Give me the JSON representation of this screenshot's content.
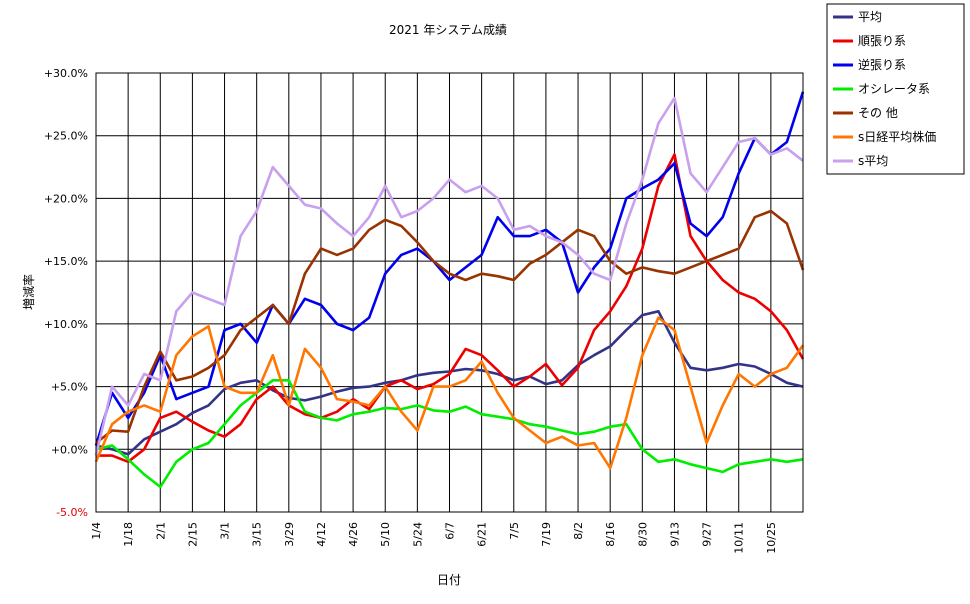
{
  "chart_data": {
    "type": "line",
    "title": "2021 年システム成績",
    "xlabel": "日付",
    "ylabel": "増減率",
    "ylim": [
      -5,
      30
    ],
    "y_ticks": [
      "+30.0%",
      "+25.0%",
      "+20.0%",
      "+15.0%",
      "+10.0%",
      "+5.0%",
      "+0.0%",
      "-5.0%"
    ],
    "y_tick_values": [
      30,
      25,
      20,
      15,
      10,
      5,
      0,
      -5
    ],
    "x_tick_labels": [
      "1/4",
      "1/18",
      "2/1",
      "2/15",
      "3/1",
      "3/15",
      "3/29",
      "4/12",
      "4/26",
      "5/10",
      "5/24",
      "6/7",
      "6/21",
      "7/5",
      "7/19",
      "8/2",
      "8/16",
      "8/30",
      "9/13",
      "9/27",
      "10/11",
      "10/25"
    ],
    "x_range_weeks": [
      0,
      44
    ],
    "grid": true,
    "legend_position": "top-right",
    "series": [
      {
        "name": "平均",
        "color": "#333388",
        "points": [
          [
            0,
            0.3
          ],
          [
            1,
            0
          ],
          [
            2,
            -0.4
          ],
          [
            3,
            0.8
          ],
          [
            4,
            1.4
          ],
          [
            5,
            2
          ],
          [
            6,
            2.9
          ],
          [
            7,
            3.5
          ],
          [
            8,
            4.8
          ],
          [
            9,
            5.3
          ],
          [
            10,
            5.5
          ],
          [
            11,
            4.7
          ],
          [
            12,
            4.1
          ],
          [
            13,
            3.9
          ],
          [
            14,
            4.2
          ],
          [
            15,
            4.6
          ],
          [
            16,
            4.9
          ],
          [
            17,
            5
          ],
          [
            18,
            5.3
          ],
          [
            19,
            5.5
          ],
          [
            20,
            5.9
          ],
          [
            21,
            6.1
          ],
          [
            22,
            6.2
          ],
          [
            23,
            6.4
          ],
          [
            24,
            6.3
          ],
          [
            25,
            6
          ],
          [
            26,
            5.5
          ],
          [
            27,
            5.8
          ],
          [
            28,
            5.2
          ],
          [
            29,
            5.5
          ],
          [
            30,
            6.7
          ],
          [
            31,
            7.5
          ],
          [
            32,
            8.2
          ],
          [
            33,
            9.5
          ],
          [
            34,
            10.7
          ],
          [
            35,
            11
          ],
          [
            36,
            8.5
          ],
          [
            37,
            6.5
          ],
          [
            38,
            6.3
          ],
          [
            39,
            6.5
          ],
          [
            40,
            6.8
          ],
          [
            41,
            6.6
          ],
          [
            42,
            6
          ],
          [
            43,
            5.3
          ],
          [
            44,
            5
          ]
        ]
      },
      {
        "name": "順張り系",
        "color": "#ee0000",
        "points": [
          [
            0,
            -0.5
          ],
          [
            1,
            -0.5
          ],
          [
            2,
            -1
          ],
          [
            3,
            0
          ],
          [
            4,
            2.5
          ],
          [
            5,
            3
          ],
          [
            6,
            2.2
          ],
          [
            7,
            1.5
          ],
          [
            8,
            1
          ],
          [
            9,
            2
          ],
          [
            10,
            4
          ],
          [
            11,
            5
          ],
          [
            12,
            3.5
          ],
          [
            13,
            2.8
          ],
          [
            14,
            2.5
          ],
          [
            15,
            3
          ],
          [
            16,
            4
          ],
          [
            17,
            3.2
          ],
          [
            18,
            5
          ],
          [
            19,
            5.5
          ],
          [
            20,
            4.8
          ],
          [
            21,
            5.2
          ],
          [
            22,
            6
          ],
          [
            23,
            8
          ],
          [
            24,
            7.5
          ],
          [
            25,
            6.3
          ],
          [
            26,
            5
          ],
          [
            27,
            5.8
          ],
          [
            28,
            6.8
          ],
          [
            29,
            5.1
          ],
          [
            30,
            6.5
          ],
          [
            31,
            9.5
          ],
          [
            32,
            11
          ],
          [
            33,
            13
          ],
          [
            34,
            16
          ],
          [
            35,
            21
          ],
          [
            36,
            23.5
          ],
          [
            37,
            17
          ],
          [
            38,
            15
          ],
          [
            39,
            13.5
          ],
          [
            40,
            12.5
          ],
          [
            41,
            12
          ],
          [
            42,
            11
          ],
          [
            43,
            9.5
          ],
          [
            44,
            7.2
          ]
        ]
      },
      {
        "name": "逆張り系",
        "color": "#0000ee",
        "points": [
          [
            0,
            0.3
          ],
          [
            1,
            4.5
          ],
          [
            2,
            2.5
          ],
          [
            3,
            4.5
          ],
          [
            4,
            7.5
          ],
          [
            5,
            4
          ],
          [
            6,
            4.5
          ],
          [
            7,
            5
          ],
          [
            8,
            9.5
          ],
          [
            9,
            10
          ],
          [
            10,
            8.5
          ],
          [
            11,
            11.5
          ],
          [
            12,
            10
          ],
          [
            13,
            12
          ],
          [
            14,
            11.5
          ],
          [
            15,
            10
          ],
          [
            16,
            9.5
          ],
          [
            17,
            10.5
          ],
          [
            18,
            14
          ],
          [
            19,
            15.5
          ],
          [
            20,
            16
          ],
          [
            21,
            15
          ],
          [
            22,
            13.5
          ],
          [
            23,
            14.5
          ],
          [
            24,
            15.5
          ],
          [
            25,
            18.5
          ],
          [
            26,
            17
          ],
          [
            27,
            17
          ],
          [
            28,
            17.5
          ],
          [
            29,
            16.5
          ],
          [
            30,
            12.5
          ],
          [
            31,
            14.5
          ],
          [
            32,
            16
          ],
          [
            33,
            20
          ],
          [
            34,
            20.8
          ],
          [
            35,
            21.5
          ],
          [
            36,
            22.8
          ],
          [
            37,
            18
          ],
          [
            38,
            17
          ],
          [
            39,
            18.5
          ],
          [
            40,
            22
          ],
          [
            41,
            24.8
          ],
          [
            42,
            23.5
          ],
          [
            43,
            24.5
          ],
          [
            44,
            28.5
          ]
        ]
      },
      {
        "name": "オシレータ系",
        "color": "#00ee00",
        "points": [
          [
            0,
            0
          ],
          [
            1,
            0.3
          ],
          [
            2,
            -0.8
          ],
          [
            3,
            -2
          ],
          [
            4,
            -3
          ],
          [
            5,
            -1
          ],
          [
            6,
            0
          ],
          [
            7,
            0.5
          ],
          [
            8,
            2
          ],
          [
            9,
            3.5
          ],
          [
            10,
            4.5
          ],
          [
            11,
            5.5
          ],
          [
            12,
            5.5
          ],
          [
            13,
            3
          ],
          [
            14,
            2.5
          ],
          [
            15,
            2.3
          ],
          [
            16,
            2.8
          ],
          [
            17,
            3
          ],
          [
            18,
            3.3
          ],
          [
            19,
            3.2
          ],
          [
            20,
            3.5
          ],
          [
            21,
            3.1
          ],
          [
            22,
            3
          ],
          [
            23,
            3.4
          ],
          [
            24,
            2.8
          ],
          [
            25,
            2.6
          ],
          [
            26,
            2.4
          ],
          [
            27,
            2
          ],
          [
            28,
            1.8
          ],
          [
            29,
            1.5
          ],
          [
            30,
            1.2
          ],
          [
            31,
            1.4
          ],
          [
            32,
            1.8
          ],
          [
            33,
            2
          ],
          [
            34,
            0
          ],
          [
            35,
            -1
          ],
          [
            36,
            -0.8
          ],
          [
            37,
            -1.2
          ],
          [
            38,
            -1.5
          ],
          [
            39,
            -1.8
          ],
          [
            40,
            -1.2
          ],
          [
            41,
            -1
          ],
          [
            42,
            -0.8
          ],
          [
            43,
            -1
          ],
          [
            44,
            -0.8
          ]
        ]
      },
      {
        "name": "その 他",
        "color": "#993300",
        "points": [
          [
            0,
            0.5
          ],
          [
            1,
            1.5
          ],
          [
            2,
            1.4
          ],
          [
            3,
            5
          ],
          [
            4,
            7.8
          ],
          [
            5,
            5.5
          ],
          [
            6,
            5.8
          ],
          [
            7,
            6.5
          ],
          [
            8,
            7.5
          ],
          [
            9,
            9.5
          ],
          [
            10,
            10.5
          ],
          [
            11,
            11.5
          ],
          [
            12,
            10
          ],
          [
            13,
            14
          ],
          [
            14,
            16
          ],
          [
            15,
            15.5
          ],
          [
            16,
            16
          ],
          [
            17,
            17.5
          ],
          [
            18,
            18.3
          ],
          [
            19,
            17.8
          ],
          [
            20,
            16.5
          ],
          [
            21,
            15
          ],
          [
            22,
            14
          ],
          [
            23,
            13.5
          ],
          [
            24,
            14
          ],
          [
            25,
            13.8
          ],
          [
            26,
            13.5
          ],
          [
            27,
            14.8
          ],
          [
            28,
            15.5
          ],
          [
            29,
            16.5
          ],
          [
            30,
            17.5
          ],
          [
            31,
            17
          ],
          [
            32,
            15
          ],
          [
            33,
            14
          ],
          [
            34,
            14.5
          ],
          [
            35,
            14.2
          ],
          [
            36,
            14
          ],
          [
            37,
            14.5
          ],
          [
            38,
            15
          ],
          [
            39,
            15.5
          ],
          [
            40,
            16
          ],
          [
            41,
            18.5
          ],
          [
            42,
            19
          ],
          [
            43,
            18
          ],
          [
            44,
            14.3
          ]
        ]
      },
      {
        "name": "s日経平均株価",
        "color": "#ff7700",
        "points": [
          [
            0,
            -1
          ],
          [
            1,
            2
          ],
          [
            2,
            3
          ],
          [
            3,
            3.5
          ],
          [
            4,
            3
          ],
          [
            5,
            7.5
          ],
          [
            6,
            9
          ],
          [
            7,
            9.8
          ],
          [
            8,
            5
          ],
          [
            9,
            4.5
          ],
          [
            10,
            4.5
          ],
          [
            11,
            7.5
          ],
          [
            12,
            3.5
          ],
          [
            13,
            8
          ],
          [
            14,
            6.5
          ],
          [
            15,
            4
          ],
          [
            16,
            3.8
          ],
          [
            17,
            3.5
          ],
          [
            18,
            5
          ],
          [
            19,
            3
          ],
          [
            20,
            1.5
          ],
          [
            21,
            5
          ],
          [
            22,
            5
          ],
          [
            23,
            5.5
          ],
          [
            24,
            7
          ],
          [
            25,
            4.5
          ],
          [
            26,
            2.5
          ],
          [
            27,
            1.5
          ],
          [
            28,
            0.5
          ],
          [
            29,
            1
          ],
          [
            30,
            0.3
          ],
          [
            31,
            0.5
          ],
          [
            32,
            -1.5
          ],
          [
            33,
            2.5
          ],
          [
            34,
            7.5
          ],
          [
            35,
            10.5
          ],
          [
            36,
            9.5
          ],
          [
            37,
            5
          ],
          [
            38,
            0.5
          ],
          [
            39,
            3.5
          ],
          [
            40,
            6
          ],
          [
            41,
            5
          ],
          [
            42,
            6
          ],
          [
            43,
            6.5
          ],
          [
            44,
            8.3
          ]
        ]
      },
      {
        "name": "s平均",
        "color": "#c8a0ee",
        "points": [
          [
            0,
            -0.5
          ],
          [
            1,
            5
          ],
          [
            2,
            3.5
          ],
          [
            3,
            6
          ],
          [
            4,
            5.5
          ],
          [
            5,
            11
          ],
          [
            6,
            12.5
          ],
          [
            7,
            12
          ],
          [
            8,
            11.5
          ],
          [
            9,
            17
          ],
          [
            10,
            19
          ],
          [
            11,
            22.5
          ],
          [
            12,
            21
          ],
          [
            13,
            19.5
          ],
          [
            14,
            19.2
          ],
          [
            15,
            18
          ],
          [
            16,
            17
          ],
          [
            17,
            18.5
          ],
          [
            18,
            21
          ],
          [
            19,
            18.5
          ],
          [
            20,
            19
          ],
          [
            21,
            20
          ],
          [
            22,
            21.5
          ],
          [
            23,
            20.5
          ],
          [
            24,
            21
          ],
          [
            25,
            20
          ],
          [
            26,
            17.5
          ],
          [
            27,
            17.8
          ],
          [
            28,
            17
          ],
          [
            29,
            16.5
          ],
          [
            30,
            15.5
          ],
          [
            31,
            14
          ],
          [
            32,
            13.5
          ],
          [
            33,
            18
          ],
          [
            34,
            21.5
          ],
          [
            35,
            26
          ],
          [
            36,
            28
          ],
          [
            37,
            22
          ],
          [
            38,
            20.5
          ],
          [
            39,
            22.5
          ],
          [
            40,
            24.5
          ],
          [
            41,
            24.8
          ],
          [
            42,
            23.5
          ],
          [
            43,
            24
          ],
          [
            44,
            23
          ]
        ]
      }
    ]
  }
}
